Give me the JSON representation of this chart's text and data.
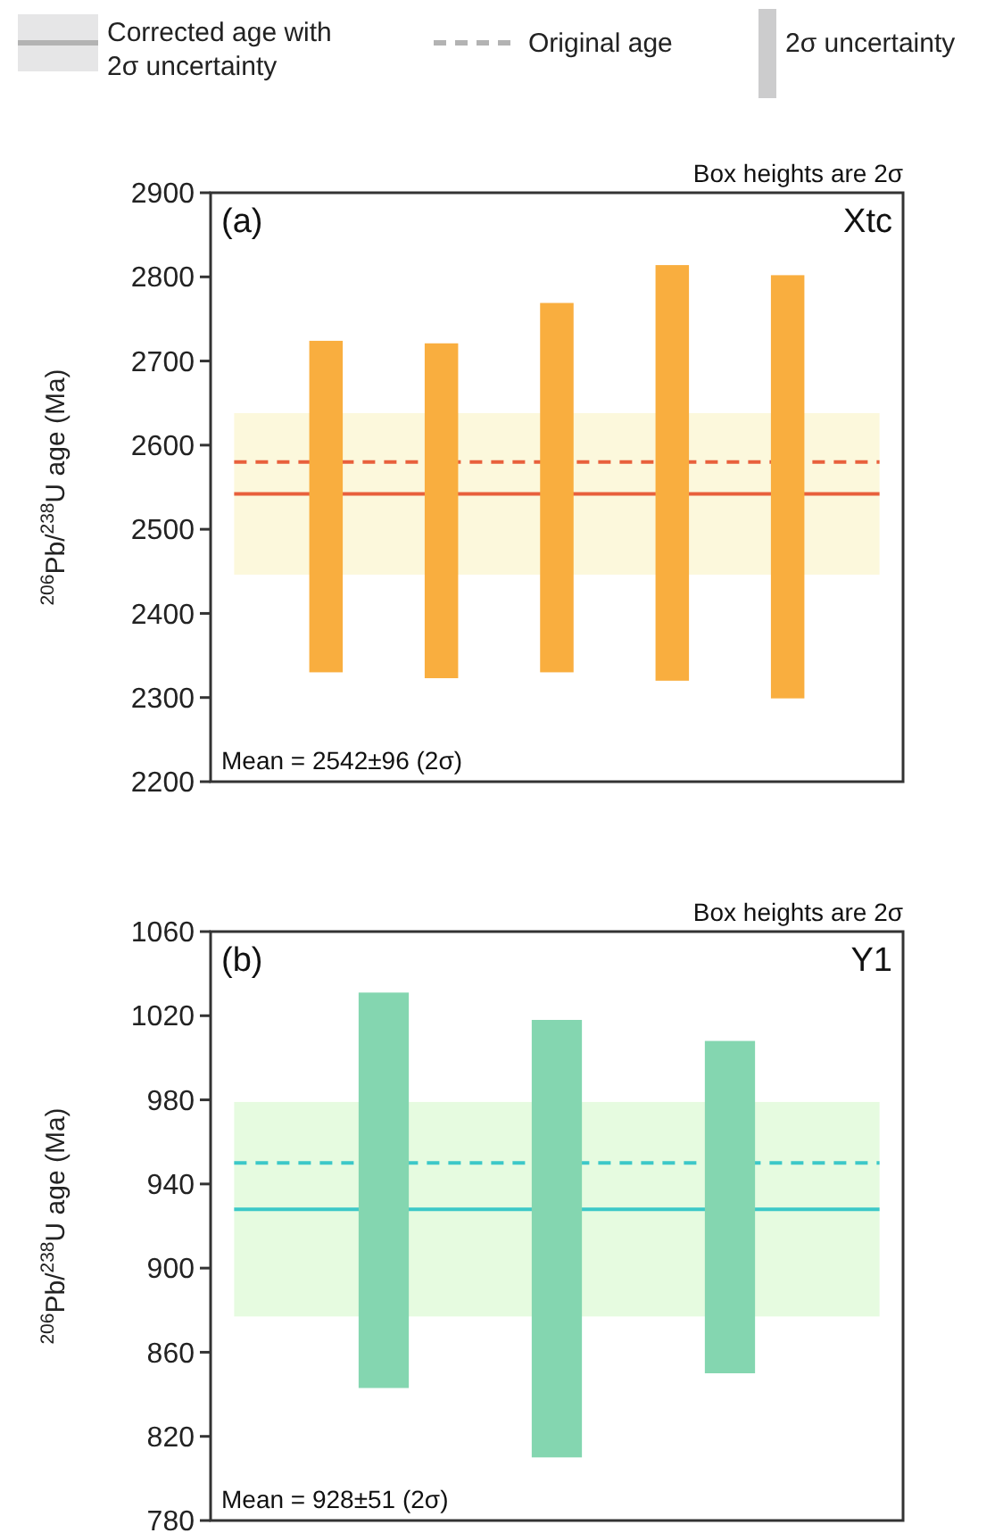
{
  "chart_data": [
    {
      "type": "bar",
      "ylabel": "$^{206}$Pb/$^{238}$U age (Ma)",
      "categories": [
        null,
        null,
        null,
        null,
        null
      ],
      "series": [
        {
          "color": "#f9ae3f",
          "values": [
            394,
            398,
            439,
            494,
            503
          ],
          "base": [
            2330,
            2323,
            2330,
            2320,
            2299
          ]
        }
      ],
      "ylim": [
        2200,
        2900
      ],
      "yticks": [
        2200,
        2300,
        2400,
        2500,
        2600,
        2700,
        2800,
        2900
      ],
      "bands": [
        {
          "axis": "y",
          "from": 2446,
          "to": 2638,
          "color": "#fcf8dc"
        }
      ],
      "ref_lines": [
        {
          "axis": "y",
          "value": 2542,
          "color": "#e8603c",
          "line_style": "solid"
        },
        {
          "axis": "y",
          "value": 2580,
          "color": "#e8603c",
          "line_style": "dashed"
        }
      ],
      "annotations": [
        "Box heights are 2σ",
        "(a)",
        "Xtc",
        "Mean = 2542±96 (2σ)",
        "Corrected age with 2σ uncertainty",
        "Original age",
        "2σ uncertainty"
      ]
    },
    {
      "type": "bar",
      "ylabel": "$^{206}$Pb/$^{238}$U age (Ma)",
      "categories": [
        null,
        null,
        null
      ],
      "series": [
        {
          "color": "#84d6b0",
          "values": [
            188,
            208,
            158
          ],
          "base": [
            843,
            810,
            850
          ]
        }
      ],
      "ylim": [
        780,
        1060
      ],
      "yticks": [
        780,
        820,
        860,
        900,
        940,
        980,
        1020,
        1060
      ],
      "bands": [
        {
          "axis": "y",
          "from": 877,
          "to": 979,
          "color": "#e6fbe0"
        }
      ],
      "ref_lines": [
        {
          "axis": "y",
          "value": 928,
          "color": "#3cc8c8",
          "line_style": "solid"
        },
        {
          "axis": "y",
          "value": 950,
          "color": "#3cc8c8",
          "line_style": "dashed"
        }
      ],
      "annotations": [
        "Box heights are 2σ",
        "(b)",
        "Y1",
        "Mean = 928±51 (2σ)"
      ]
    }
  ]
}
